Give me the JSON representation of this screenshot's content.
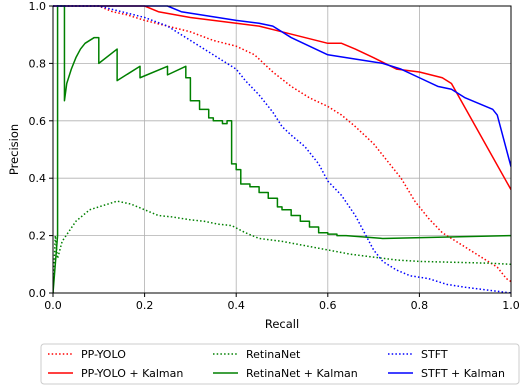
{
  "chart_data": {
    "type": "line",
    "title": "",
    "xlabel": "Recall",
    "ylabel": "Precision",
    "xlim": [
      0.0,
      1.0
    ],
    "ylim": [
      0.0,
      1.0
    ],
    "xticks": [
      "0.0",
      "0.2",
      "0.4",
      "0.6",
      "0.8",
      "1.0"
    ],
    "yticks": [
      "0.0",
      "0.2",
      "0.4",
      "0.6",
      "0.8",
      "1.0"
    ],
    "grid": true,
    "legend_position": "bottom",
    "series": [
      {
        "name": "PP-YOLO",
        "color": "#ff0000",
        "dash": "dotted",
        "x": [
          0.0,
          0.1,
          0.13,
          0.16,
          0.2,
          0.25,
          0.3,
          0.35,
          0.4,
          0.44,
          0.48,
          0.52,
          0.56,
          0.6,
          0.63,
          0.66,
          0.7,
          0.73,
          0.76,
          0.79,
          0.82,
          0.85,
          0.88,
          0.91,
          0.94,
          0.97,
          0.99,
          1.0
        ],
        "y": [
          1.0,
          1.0,
          0.98,
          0.97,
          0.95,
          0.93,
          0.91,
          0.88,
          0.86,
          0.83,
          0.77,
          0.72,
          0.68,
          0.65,
          0.62,
          0.58,
          0.52,
          0.46,
          0.4,
          0.32,
          0.26,
          0.21,
          0.18,
          0.15,
          0.12,
          0.09,
          0.05,
          0.04
        ]
      },
      {
        "name": "PP-YOLO + Kalman",
        "color": "#ff0000",
        "dash": "solid",
        "x": [
          0.0,
          0.2,
          0.23,
          0.3,
          0.35,
          0.4,
          0.45,
          0.5,
          0.55,
          0.6,
          0.63,
          0.66,
          0.7,
          0.75,
          0.8,
          0.85,
          0.87,
          1.0
        ],
        "y": [
          1.0,
          1.0,
          0.98,
          0.96,
          0.95,
          0.94,
          0.93,
          0.91,
          0.89,
          0.87,
          0.87,
          0.85,
          0.82,
          0.78,
          0.77,
          0.75,
          0.73,
          0.36
        ]
      },
      {
        "name": "RetinaNet",
        "color": "#008000",
        "dash": "dotted",
        "x": [
          0.0,
          0.005,
          0.01,
          0.02,
          0.05,
          0.08,
          0.1,
          0.12,
          0.14,
          0.17,
          0.2,
          0.23,
          0.26,
          0.3,
          0.33,
          0.36,
          0.39,
          0.42,
          0.45,
          0.5,
          0.55,
          0.6,
          0.65,
          0.7,
          0.75,
          0.8,
          0.85,
          0.9,
          0.95,
          1.0
        ],
        "y": [
          0.0,
          0.2,
          0.12,
          0.18,
          0.25,
          0.29,
          0.3,
          0.31,
          0.32,
          0.31,
          0.29,
          0.27,
          0.265,
          0.255,
          0.25,
          0.24,
          0.235,
          0.21,
          0.19,
          0.18,
          0.165,
          0.15,
          0.135,
          0.125,
          0.115,
          0.11,
          0.108,
          0.106,
          0.104,
          0.1
        ]
      },
      {
        "name": "RetinaNet + Kalman",
        "color": "#008000",
        "dash": "solid",
        "x": [
          0.0,
          0.01,
          0.01,
          0.025,
          0.025,
          0.03,
          0.04,
          0.05,
          0.06,
          0.07,
          0.08,
          0.09,
          0.1,
          0.1,
          0.14,
          0.14,
          0.19,
          0.19,
          0.25,
          0.25,
          0.29,
          0.29,
          0.3,
          0.3,
          0.32,
          0.32,
          0.34,
          0.34,
          0.35,
          0.35,
          0.37,
          0.37,
          0.38,
          0.38,
          0.39,
          0.39,
          0.4,
          0.4,
          0.41,
          0.41,
          0.43,
          0.43,
          0.45,
          0.45,
          0.47,
          0.47,
          0.49,
          0.49,
          0.5,
          0.5,
          0.52,
          0.52,
          0.54,
          0.54,
          0.56,
          0.56,
          0.58,
          0.58,
          0.6,
          0.6,
          0.62,
          0.62,
          0.64,
          0.64,
          0.72,
          1.0
        ],
        "y": [
          0.0,
          0.2,
          1.0,
          1.0,
          0.67,
          0.73,
          0.78,
          0.82,
          0.85,
          0.87,
          0.88,
          0.89,
          0.89,
          0.8,
          0.85,
          0.74,
          0.79,
          0.75,
          0.79,
          0.76,
          0.79,
          0.75,
          0.75,
          0.67,
          0.67,
          0.64,
          0.64,
          0.61,
          0.61,
          0.6,
          0.6,
          0.59,
          0.59,
          0.6,
          0.6,
          0.45,
          0.45,
          0.43,
          0.43,
          0.38,
          0.38,
          0.37,
          0.37,
          0.35,
          0.35,
          0.33,
          0.33,
          0.3,
          0.3,
          0.29,
          0.29,
          0.27,
          0.27,
          0.25,
          0.25,
          0.23,
          0.23,
          0.21,
          0.21,
          0.205,
          0.205,
          0.2,
          0.2,
          0.2,
          0.19,
          0.2
        ]
      },
      {
        "name": "STFT",
        "color": "#0000ff",
        "dash": "dotted",
        "x": [
          0.0,
          0.1,
          0.15,
          0.2,
          0.25,
          0.28,
          0.32,
          0.36,
          0.4,
          0.42,
          0.45,
          0.48,
          0.5,
          0.52,
          0.55,
          0.58,
          0.6,
          0.63,
          0.66,
          0.68,
          0.7,
          0.72,
          0.75,
          0.78,
          0.82,
          0.86,
          0.9,
          0.95,
          1.0
        ],
        "y": [
          1.0,
          1.0,
          0.98,
          0.96,
          0.93,
          0.9,
          0.86,
          0.82,
          0.78,
          0.74,
          0.69,
          0.63,
          0.58,
          0.55,
          0.51,
          0.45,
          0.39,
          0.34,
          0.27,
          0.21,
          0.15,
          0.11,
          0.08,
          0.06,
          0.05,
          0.03,
          0.02,
          0.01,
          0.0
        ]
      },
      {
        "name": "STFT + Kalman",
        "color": "#0000ff",
        "dash": "solid",
        "x": [
          0.0,
          0.25,
          0.28,
          0.32,
          0.36,
          0.4,
          0.45,
          0.48,
          0.52,
          0.56,
          0.6,
          0.64,
          0.68,
          0.72,
          0.76,
          0.8,
          0.84,
          0.87,
          0.9,
          0.93,
          0.96,
          0.97,
          1.0
        ],
        "y": [
          1.0,
          1.0,
          0.98,
          0.97,
          0.96,
          0.95,
          0.94,
          0.93,
          0.89,
          0.86,
          0.83,
          0.82,
          0.81,
          0.8,
          0.78,
          0.75,
          0.72,
          0.71,
          0.68,
          0.66,
          0.64,
          0.62,
          0.44
        ]
      }
    ]
  }
}
